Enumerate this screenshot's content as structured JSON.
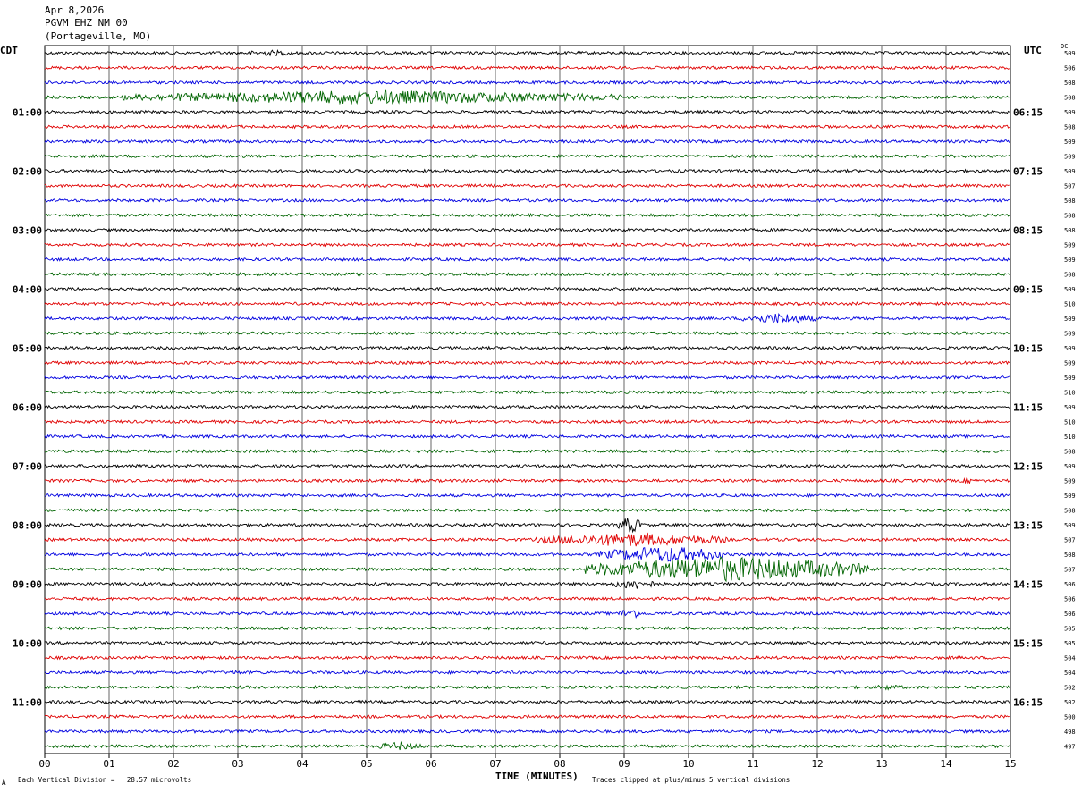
{
  "header": {
    "date": "Apr 8,2026",
    "station": "PGVM EHZ NM 00",
    "location": "(Portageville, MO)"
  },
  "left_tz": "CDT",
  "right_tz": "UTC",
  "dc_header": "DC",
  "footer": {
    "scale_note": "Each Vertical Division =   28.57 microvolts",
    "clip_note": "Traces clipped at plus/minus 5 vertical divisions",
    "corner_mark": "A"
  },
  "colors": {
    "trace_cycle": [
      "#000000",
      "#e00000",
      "#0000e0",
      "#006400"
    ],
    "grid": "#000000"
  },
  "chart_data": {
    "type": "helicorder",
    "xlabel": "TIME (MINUTES)",
    "x_ticks": [
      "00",
      "01",
      "02",
      "03",
      "04",
      "05",
      "06",
      "07",
      "08",
      "09",
      "10",
      "11",
      "12",
      "13",
      "14",
      "15"
    ],
    "xlim": [
      0,
      15
    ],
    "traces_per_hour": 4,
    "left_hour_labels": [
      "01:00",
      "02:00",
      "03:00",
      "04:00",
      "05:00",
      "06:00",
      "07:00",
      "08:00",
      "09:00",
      "10:00",
      "11:00"
    ],
    "right_hour_labels": [
      "06:15",
      "07:15",
      "08:15",
      "09:15",
      "10:15",
      "11:15",
      "12:15",
      "13:15",
      "14:15",
      "15:15",
      "16:15"
    ],
    "dc_offsets": [
      509,
      506,
      508,
      508,
      509,
      508,
      509,
      509,
      509,
      507,
      508,
      508,
      508,
      509,
      509,
      508,
      509,
      510,
      509,
      509,
      509,
      509,
      509,
      510,
      509,
      510,
      510,
      508,
      509,
      509,
      509,
      508,
      509,
      507,
      508,
      507,
      506,
      506,
      506,
      505,
      505,
      504,
      504,
      502,
      502,
      500,
      498,
      497
    ],
    "amplitude_divisions": 5,
    "events": [
      {
        "trace": 0,
        "start_min": 3.0,
        "end_min": 4.0,
        "amp": 2.2
      },
      {
        "trace": 3,
        "start_min": 1.2,
        "end_min": 9.0,
        "amp": 5
      },
      {
        "trace": 18,
        "start_min": 10.8,
        "end_min": 12.0,
        "amp": 4
      },
      {
        "trace": 29,
        "start_min": 14.2,
        "end_min": 14.5,
        "amp": 2
      },
      {
        "trace": 32,
        "start_min": 8.9,
        "end_min": 9.3,
        "amp": 6
      },
      {
        "trace": 33,
        "start_min": 7.6,
        "end_min": 10.6,
        "amp": 5
      },
      {
        "trace": 34,
        "start_min": 8.6,
        "end_min": 10.6,
        "amp": 6
      },
      {
        "trace": 35,
        "start_min": 8.4,
        "end_min": 12.8,
        "amp": 9
      },
      {
        "trace": 36,
        "start_min": 8.8,
        "end_min": 9.5,
        "amp": 4
      },
      {
        "trace": 38,
        "start_min": 8.9,
        "end_min": 9.3,
        "amp": 4
      },
      {
        "trace": 42,
        "start_min": 2.9,
        "end_min": 3.0,
        "amp": 3
      },
      {
        "trace": 43,
        "start_min": 12.8,
        "end_min": 13.4,
        "amp": 2
      },
      {
        "trace": 47,
        "start_min": 5.1,
        "end_min": 5.9,
        "amp": 3
      }
    ]
  }
}
